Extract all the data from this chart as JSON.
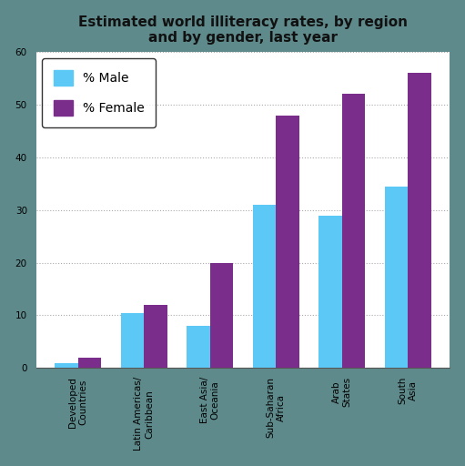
{
  "title": "Estimated world illiteracy rates, by region\nand by gender, last year",
  "categories": [
    "Developed\nCountries",
    "Latin Americas/\nCaribbean",
    "East Asia/\nOceania",
    "Sub-Saharan\nAfrica",
    "Arab\nStates",
    "South\nAsia"
  ],
  "male_values": [
    1,
    10.5,
    8,
    31,
    29,
    34.5
  ],
  "female_values": [
    2,
    12,
    20,
    48,
    52,
    56
  ],
  "male_color": "#5BC8F5",
  "female_color": "#7B2D8B",
  "background_color": "#5F8A8B",
  "plot_bg_color": "#FFFFFF",
  "ylim": [
    0,
    60
  ],
  "yticks": [
    0,
    10,
    20,
    30,
    40,
    50,
    60
  ],
  "bar_width": 0.35,
  "legend_labels": [
    "% Male",
    "% Female"
  ],
  "title_fontsize": 11,
  "tick_fontsize": 7.5,
  "legend_fontsize": 10
}
